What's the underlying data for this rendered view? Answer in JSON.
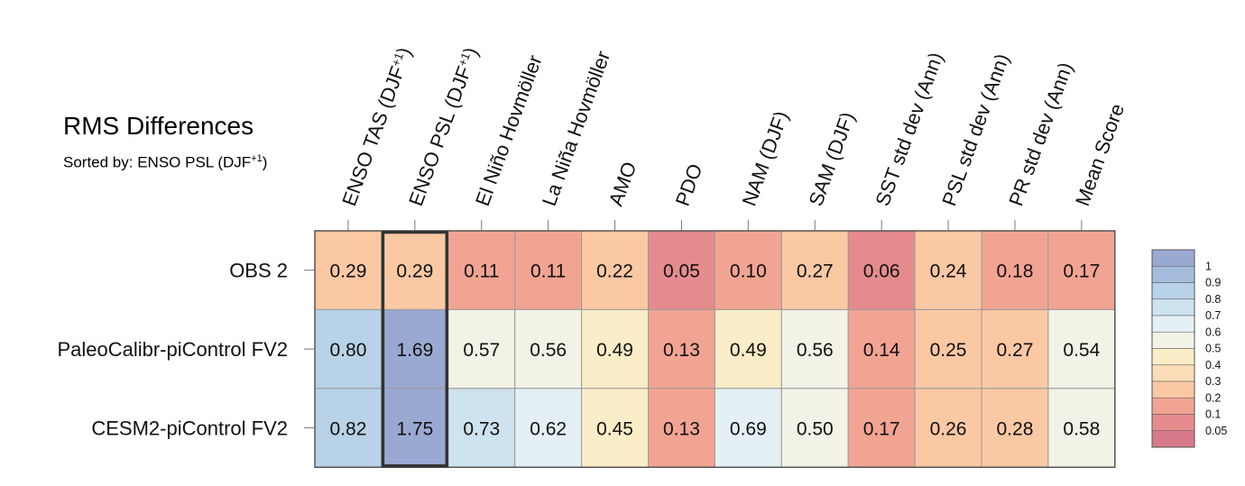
{
  "title": "RMS Differences",
  "subtitle": {
    "prefix": "Sorted by: ENSO PSL (DJF",
    "superscript": "+1",
    "suffix": ")"
  },
  "chart_data": {
    "type": "heatmap",
    "title": "RMS Differences",
    "subtitle": "Sorted by: ENSO PSL (DJF+1)",
    "columns": [
      {
        "label": "ENSO TAS (DJF",
        "sup": "+1",
        "end": ")"
      },
      {
        "label": "ENSO PSL (DJF",
        "sup": "+1",
        "end": ")"
      },
      {
        "label": "El Niño Hovmöller"
      },
      {
        "label": "La Niña Hovmöller"
      },
      {
        "label": "AMO"
      },
      {
        "label": "PDO"
      },
      {
        "label": "NAM (DJF)"
      },
      {
        "label": "SAM (DJF)"
      },
      {
        "label": "SST std dev (Ann)"
      },
      {
        "label": "PSL std dev (Ann)"
      },
      {
        "label": "PR std dev (Ann)"
      },
      {
        "label": "Mean Score"
      }
    ],
    "rows": [
      "OBS 2",
      "PaleoCalibr-piControl FV2",
      "CESM2-piControl FV2"
    ],
    "values": [
      [
        0.29,
        0.29,
        0.11,
        0.11,
        0.22,
        0.05,
        0.1,
        0.27,
        0.06,
        0.24,
        0.18,
        0.17
      ],
      [
        0.8,
        1.69,
        0.57,
        0.56,
        0.49,
        0.13,
        0.49,
        0.56,
        0.14,
        0.25,
        0.27,
        0.54
      ],
      [
        0.82,
        1.75,
        0.73,
        0.62,
        0.45,
        0.13,
        0.69,
        0.5,
        0.17,
        0.26,
        0.28,
        0.58
      ]
    ],
    "labels": [
      [
        "0.29",
        "0.29",
        "0.11",
        "0.11",
        "0.22",
        "0.05",
        "0.10",
        "0.27",
        "0.06",
        "0.24",
        "0.18",
        "0.17"
      ],
      [
        "0.80",
        "1.69",
        "0.57",
        "0.56",
        "0.49",
        "0.13",
        "0.49",
        "0.56",
        "0.14",
        "0.25",
        "0.27",
        "0.54"
      ],
      [
        "0.82",
        "1.75",
        "0.73",
        "0.62",
        "0.45",
        "0.13",
        "0.69",
        "0.50",
        "0.17",
        "0.26",
        "0.28",
        "0.58"
      ]
    ],
    "highlighted_column": 1,
    "colorbar": {
      "ticks": [
        "1",
        "0.9",
        "0.8",
        "0.7",
        "0.6",
        "0.5",
        "0.4",
        "0.3",
        "0.2",
        "0.1",
        "0.05"
      ],
      "bands": [
        {
          "min": 1.0,
          "max": 99,
          "color": "#9aa9d2"
        },
        {
          "min": 0.9,
          "max": 1.0,
          "color": "#a6bcdc"
        },
        {
          "min": 0.8,
          "max": 0.9,
          "color": "#b8d2e7"
        },
        {
          "min": 0.7,
          "max": 0.8,
          "color": "#cee3ef"
        },
        {
          "min": 0.6,
          "max": 0.7,
          "color": "#e5f0f5"
        },
        {
          "min": 0.5,
          "max": 0.6,
          "color": "#f3f2e6"
        },
        {
          "min": 0.4,
          "max": 0.5,
          "color": "#fbedc7"
        },
        {
          "min": 0.3,
          "max": 0.4,
          "color": "#fbdcb6"
        },
        {
          "min": 0.2,
          "max": 0.3,
          "color": "#fbc8a4"
        },
        {
          "min": 0.1,
          "max": 0.2,
          "color": "#f2a493"
        },
        {
          "min": 0.05,
          "max": 0.1,
          "color": "#e58b8d"
        },
        {
          "min": 0.0,
          "max": 0.05,
          "color": "#d77a8c"
        }
      ]
    }
  }
}
